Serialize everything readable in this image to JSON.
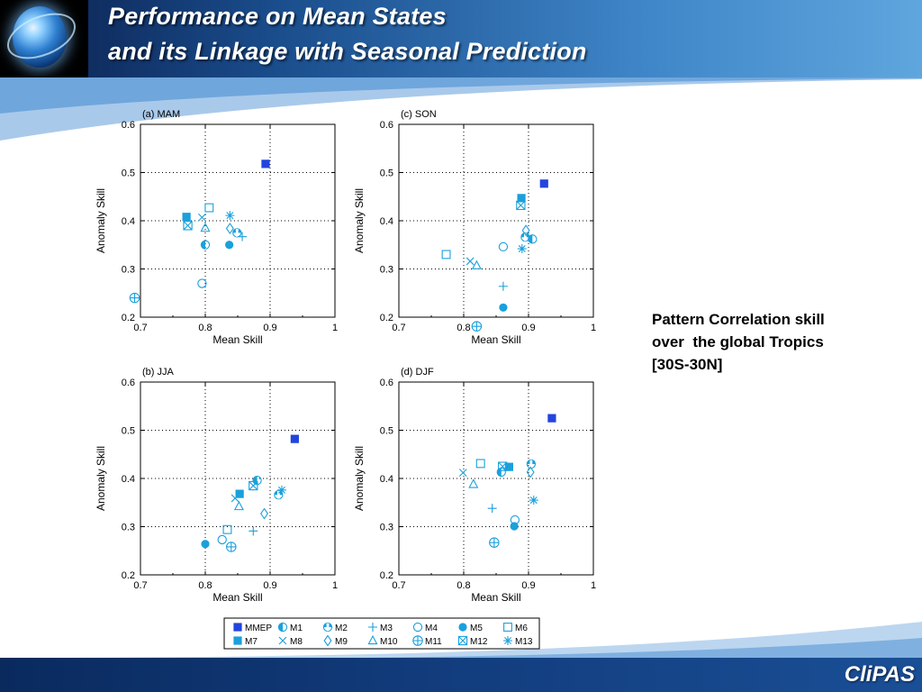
{
  "header": {
    "title_line1": "Performance on Mean States",
    "title_line2": "and its Linkage with Seasonal Prediction"
  },
  "caption": {
    "line1": "Pattern Correlation skill",
    "line2": "over  the global Tropics",
    "line3": "[30S-30N]"
  },
  "footer": {
    "logo": "CliPAS"
  },
  "colors": {
    "mmep": "#2244dd",
    "models": "#1aa0dc",
    "header_dark": "#0a1e4c",
    "header_light": "#5fa6de"
  },
  "chart_data": [
    {
      "panel": "(a)",
      "season": "MAM",
      "type": "scatter",
      "xlabel": "Mean  Skill",
      "ylabel": "Anomaly  Skill",
      "xlim": [
        0.7,
        1.0
      ],
      "ylim": [
        0.2,
        0.6
      ],
      "grid": true,
      "xticks": [
        "0.7",
        "0.8",
        "0.9",
        "1"
      ],
      "yticks": [
        "0.2",
        "0.3",
        "0.4",
        "0.5",
        "0.6"
      ],
      "points": [
        {
          "model": "MMEP",
          "x": 0.893,
          "y": 0.518
        },
        {
          "model": "M1",
          "x": 0.8,
          "y": 0.35
        },
        {
          "model": "M2",
          "x": 0.849,
          "y": 0.375
        },
        {
          "model": "M3",
          "x": 0.857,
          "y": 0.367
        },
        {
          "model": "M4",
          "x": 0.795,
          "y": 0.27
        },
        {
          "model": "M5",
          "x": 0.837,
          "y": 0.35
        },
        {
          "model": "M6",
          "x": 0.806,
          "y": 0.427
        },
        {
          "model": "M7",
          "x": 0.771,
          "y": 0.408
        },
        {
          "model": "M8",
          "x": 0.795,
          "y": 0.407
        },
        {
          "model": "M9",
          "x": 0.838,
          "y": 0.384
        },
        {
          "model": "M10",
          "x": 0.8,
          "y": 0.385
        },
        {
          "model": "M11",
          "x": 0.691,
          "y": 0.24
        },
        {
          "model": "M12",
          "x": 0.773,
          "y": 0.39
        },
        {
          "model": "M13",
          "x": 0.838,
          "y": 0.411
        }
      ]
    },
    {
      "panel": "(c)",
      "season": "SON",
      "type": "scatter",
      "xlabel": "Mean  Skill",
      "ylabel": "Anomaly  Skill",
      "xlim": [
        0.7,
        1.0
      ],
      "ylim": [
        0.2,
        0.6
      ],
      "grid": true,
      "xticks": [
        "0.7",
        "0.8",
        "0.9",
        "1"
      ],
      "yticks": [
        "0.2",
        "0.3",
        "0.4",
        "0.5",
        "0.6"
      ],
      "points": [
        {
          "model": "MMEP",
          "x": 0.924,
          "y": 0.477
        },
        {
          "model": "M1",
          "x": 0.906,
          "y": 0.362
        },
        {
          "model": "M2",
          "x": 0.895,
          "y": 0.366
        },
        {
          "model": "M3",
          "x": 0.861,
          "y": 0.264
        },
        {
          "model": "M4",
          "x": 0.861,
          "y": 0.346
        },
        {
          "model": "M5",
          "x": 0.861,
          "y": 0.22
        },
        {
          "model": "M6",
          "x": 0.773,
          "y": 0.33
        },
        {
          "model": "M7",
          "x": 0.889,
          "y": 0.447
        },
        {
          "model": "M8",
          "x": 0.81,
          "y": 0.316
        },
        {
          "model": "M9",
          "x": 0.896,
          "y": 0.38
        },
        {
          "model": "M10",
          "x": 0.82,
          "y": 0.307
        },
        {
          "model": "M11",
          "x": 0.82,
          "y": 0.181
        },
        {
          "model": "M12",
          "x": 0.888,
          "y": 0.432
        },
        {
          "model": "M13",
          "x": 0.89,
          "y": 0.342
        }
      ]
    },
    {
      "panel": "(b)",
      "season": "JJA",
      "type": "scatter",
      "xlabel": "Mean  Skill",
      "ylabel": "Anomaly  Skill",
      "xlim": [
        0.7,
        1.0
      ],
      "ylim": [
        0.2,
        0.6
      ],
      "grid": true,
      "xticks": [
        "0.7",
        "0.8",
        "0.9",
        "1"
      ],
      "yticks": [
        "0.2",
        "0.3",
        "0.4",
        "0.5",
        "0.6"
      ],
      "points": [
        {
          "model": "MMEP",
          "x": 0.938,
          "y": 0.482
        },
        {
          "model": "M1",
          "x": 0.88,
          "y": 0.396
        },
        {
          "model": "M2",
          "x": 0.913,
          "y": 0.366
        },
        {
          "model": "M3",
          "x": 0.874,
          "y": 0.291
        },
        {
          "model": "M4",
          "x": 0.826,
          "y": 0.273
        },
        {
          "model": "M5",
          "x": 0.8,
          "y": 0.264
        },
        {
          "model": "M6",
          "x": 0.834,
          "y": 0.294
        },
        {
          "model": "M7",
          "x": 0.853,
          "y": 0.368
        },
        {
          "model": "M8",
          "x": 0.846,
          "y": 0.359
        },
        {
          "model": "M9",
          "x": 0.891,
          "y": 0.327
        },
        {
          "model": "M10",
          "x": 0.852,
          "y": 0.342
        },
        {
          "model": "M11",
          "x": 0.84,
          "y": 0.258
        },
        {
          "model": "M12",
          "x": 0.874,
          "y": 0.385
        },
        {
          "model": "M13",
          "x": 0.918,
          "y": 0.376
        }
      ]
    },
    {
      "panel": "(d)",
      "season": "DJF",
      "type": "scatter",
      "xlabel": "Mean  Skill",
      "ylabel": "Anomaly  Skill",
      "xlim": [
        0.7,
        1.0
      ],
      "ylim": [
        0.2,
        0.6
      ],
      "grid": true,
      "xticks": [
        "0.7",
        "0.8",
        "0.9",
        "1"
      ],
      "yticks": [
        "0.2",
        "0.3",
        "0.4",
        "0.5",
        "0.6"
      ],
      "points": [
        {
          "model": "MMEP",
          "x": 0.936,
          "y": 0.525
        },
        {
          "model": "M1",
          "x": 0.858,
          "y": 0.413
        },
        {
          "model": "M2",
          "x": 0.904,
          "y": 0.43
        },
        {
          "model": "M3",
          "x": 0.844,
          "y": 0.338
        },
        {
          "model": "M4",
          "x": 0.879,
          "y": 0.314
        },
        {
          "model": "M5",
          "x": 0.878,
          "y": 0.301
        },
        {
          "model": "M6",
          "x": 0.826,
          "y": 0.431
        },
        {
          "model": "M7",
          "x": 0.87,
          "y": 0.424
        },
        {
          "model": "M8",
          "x": 0.799,
          "y": 0.412
        },
        {
          "model": "M9",
          "x": 0.903,
          "y": 0.413
        },
        {
          "model": "M10",
          "x": 0.815,
          "y": 0.388
        },
        {
          "model": "M11",
          "x": 0.847,
          "y": 0.267
        },
        {
          "model": "M12",
          "x": 0.86,
          "y": 0.425
        },
        {
          "model": "M13",
          "x": 0.908,
          "y": 0.355
        }
      ]
    }
  ],
  "legend": [
    {
      "model": "MMEP",
      "label": "MMEP"
    },
    {
      "model": "M1",
      "label": "M1"
    },
    {
      "model": "M2",
      "label": "M2"
    },
    {
      "model": "M3",
      "label": "M3"
    },
    {
      "model": "M4",
      "label": "M4"
    },
    {
      "model": "M5",
      "label": "M5"
    },
    {
      "model": "M6",
      "label": "M6"
    },
    {
      "model": "M7",
      "label": "M7"
    },
    {
      "model": "M8",
      "label": "M8"
    },
    {
      "model": "M9",
      "label": "M9"
    },
    {
      "model": "M10",
      "label": "M10"
    },
    {
      "model": "M11",
      "label": "M11"
    },
    {
      "model": "M12",
      "label": "M12"
    },
    {
      "model": "M13",
      "label": "M13"
    }
  ]
}
